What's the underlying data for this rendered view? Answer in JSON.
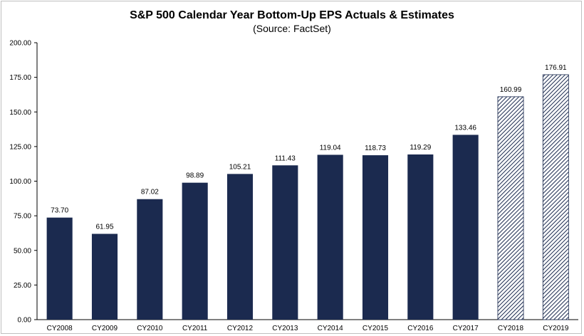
{
  "chart_data": {
    "type": "bar",
    "title": "S&P 500 Calendar Year Bottom-Up EPS Actuals & Estimates",
    "subtitle": "(Source: FactSet)",
    "categories": [
      "CY2008",
      "CY2009",
      "CY2010",
      "CY2011",
      "CY2012",
      "CY2013",
      "CY2014",
      "CY2015",
      "CY2016",
      "CY2017",
      "CY2018",
      "CY2019"
    ],
    "values": [
      73.7,
      61.95,
      87.02,
      98.89,
      105.21,
      111.43,
      119.04,
      118.73,
      119.29,
      133.46,
      160.99,
      176.91
    ],
    "value_labels": [
      "73.70",
      "61.95",
      "87.02",
      "98.89",
      "105.21",
      "111.43",
      "119.04",
      "118.73",
      "119.29",
      "133.46",
      "160.99",
      "176.91"
    ],
    "estimate": [
      false,
      false,
      false,
      false,
      false,
      false,
      false,
      false,
      false,
      false,
      true,
      true
    ],
    "ylim": [
      0,
      200
    ],
    "yticks": [
      0,
      25,
      50,
      75,
      100,
      125,
      150,
      175,
      200
    ],
    "ytick_labels": [
      "0.00",
      "25.00",
      "50.00",
      "75.00",
      "100.00",
      "125.00",
      "150.00",
      "175.00",
      "200.00"
    ],
    "grid": false,
    "colors": {
      "actual": "#1b2a4f",
      "estimate_hatch": "#1b2a4f",
      "axis": "#000000"
    }
  }
}
